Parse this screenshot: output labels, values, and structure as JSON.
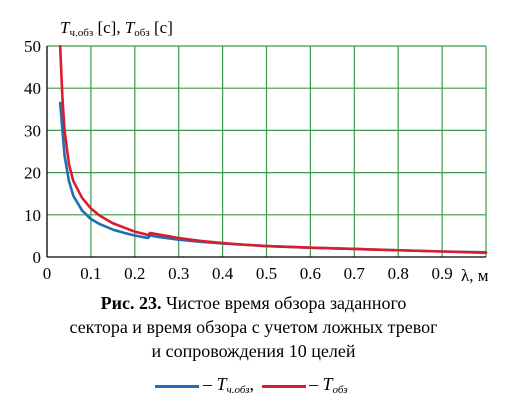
{
  "chart_data": {
    "type": "line",
    "title_main": "T",
    "title_sub1": "ч.обз",
    "title_unit1": " [с], ",
    "title_sub2": "обз",
    "title_unit2": " [с]",
    "xlabel": "λ, м",
    "xlim": [
      0,
      1.0
    ],
    "ylim": [
      0,
      50
    ],
    "x_ticks": [
      "0",
      "0.1",
      "0.2",
      "0.3",
      "0.4",
      "0.5",
      "0.6",
      "0.7",
      "0.8",
      "0.9"
    ],
    "y_ticks": [
      "0",
      "10",
      "20",
      "30",
      "40",
      "50"
    ],
    "grid": true,
    "series": [
      {
        "name": "Tч.обз",
        "color": "#1f6fb2",
        "x": [
          0.03,
          0.04,
          0.05,
          0.06,
          0.08,
          0.1,
          0.12,
          0.15,
          0.18,
          0.2,
          0.22,
          0.23,
          0.235,
          0.24,
          0.25,
          0.3,
          0.35,
          0.4,
          0.45,
          0.5,
          0.6,
          0.7,
          0.8,
          0.9,
          1.0
        ],
        "y": [
          36.5,
          24.0,
          18.0,
          14.5,
          11.0,
          9.0,
          7.8,
          6.5,
          5.6,
          5.1,
          4.7,
          4.5,
          5.1,
          5.0,
          4.8,
          4.1,
          3.6,
          3.2,
          2.9,
          2.6,
          2.2,
          1.9,
          1.6,
          1.3,
          1.1
        ]
      },
      {
        "name": "Tобз",
        "color": "#d81e2c",
        "x": [
          0.03,
          0.035,
          0.04,
          0.05,
          0.06,
          0.08,
          0.1,
          0.12,
          0.15,
          0.18,
          0.2,
          0.22,
          0.23,
          0.235,
          0.24,
          0.25,
          0.3,
          0.35,
          0.4,
          0.45,
          0.5,
          0.6,
          0.7,
          0.8,
          0.9,
          1.0
        ],
        "y": [
          50.0,
          38.0,
          30.0,
          22.0,
          18.0,
          14.0,
          11.5,
          9.8,
          8.0,
          6.8,
          6.0,
          5.5,
          5.2,
          5.7,
          5.6,
          5.4,
          4.5,
          3.8,
          3.3,
          2.9,
          2.6,
          2.2,
          1.9,
          1.6,
          1.3,
          1.0
        ]
      }
    ]
  },
  "caption": {
    "fig_label": "Рис. 23.",
    "line1_rest": " Чистое время обзора заданного",
    "line2": "сектора и время обзора с учетом ложных тревог",
    "line3": "и сопровождения 10 целей"
  },
  "legend": {
    "dash": "– ",
    "item1_main": "T",
    "item1_sub": "ч.обз",
    "item1_tail": ",",
    "item2_main": "T",
    "item2_sub": "обз"
  }
}
